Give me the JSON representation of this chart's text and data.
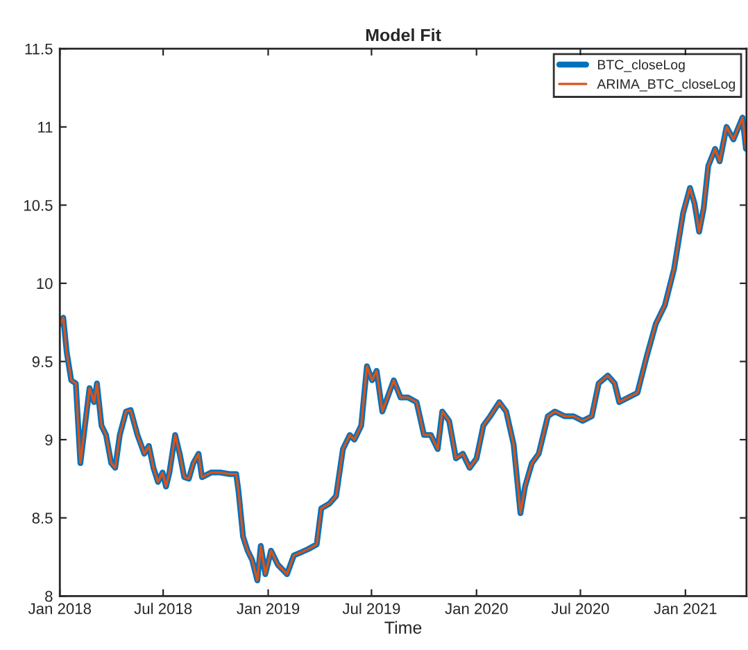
{
  "chart_data": {
    "type": "line",
    "title": "Model Fit",
    "xlabel": "Time",
    "x": [
      "2018-01-01",
      "2018-01-07",
      "2018-01-13",
      "2018-01-21",
      "2018-01-29",
      "2018-02-06",
      "2018-02-14",
      "2018-02-22",
      "2018-03-02",
      "2018-03-07",
      "2018-03-15",
      "2018-03-23",
      "2018-04-01",
      "2018-04-08",
      "2018-04-16",
      "2018-04-27",
      "2018-05-05",
      "2018-05-17",
      "2018-05-29",
      "2018-06-06",
      "2018-06-14",
      "2018-06-22",
      "2018-06-30",
      "2018-07-06",
      "2018-07-12",
      "2018-07-22",
      "2018-07-30",
      "2018-08-07",
      "2018-08-15",
      "2018-08-23",
      "2018-09-01",
      "2018-09-07",
      "2018-09-23",
      "2018-10-09",
      "2018-10-25",
      "2018-11-06",
      "2018-11-10",
      "2018-11-18",
      "2018-11-26",
      "2018-12-04",
      "2018-12-13",
      "2018-12-19",
      "2018-12-27",
      "2019-01-06",
      "2019-01-18",
      "2019-02-03",
      "2019-02-15",
      "2019-02-28",
      "2019-03-12",
      "2019-03-27",
      "2019-04-04",
      "2019-04-18",
      "2019-04-30",
      "2019-05-12",
      "2019-05-24",
      "2019-06-01",
      "2019-06-13",
      "2019-06-23",
      "2019-07-02",
      "2019-07-10",
      "2019-07-20",
      "2019-08-09",
      "2019-08-21",
      "2019-09-03",
      "2019-09-18",
      "2019-10-01",
      "2019-10-13",
      "2019-10-25",
      "2019-11-02",
      "2019-11-14",
      "2019-11-26",
      "2019-12-08",
      "2019-12-20",
      "2020-01-01",
      "2020-01-13",
      "2020-01-25",
      "2020-02-10",
      "2020-02-22",
      "2020-03-06",
      "2020-03-18",
      "2020-03-26",
      "2020-04-07",
      "2020-04-19",
      "2020-05-05",
      "2020-05-17",
      "2020-06-03",
      "2020-06-19",
      "2020-07-05",
      "2020-07-21",
      "2020-08-02",
      "2020-08-18",
      "2020-08-30",
      "2020-09-07",
      "2020-09-23",
      "2020-10-09",
      "2020-10-25",
      "2020-11-10",
      "2020-11-26",
      "2020-12-12",
      "2020-12-28",
      "2021-01-09",
      "2021-01-17",
      "2021-01-25",
      "2021-02-02",
      "2021-02-10",
      "2021-02-22",
      "2021-03-02",
      "2021-03-14",
      "2021-03-26",
      "2021-04-11",
      "2021-04-17"
    ],
    "series": [
      {
        "name": "BTC_closeLog",
        "color": "#0072bd",
        "values": [
          9.74,
          9.78,
          9.56,
          9.38,
          9.36,
          8.85,
          9.09,
          9.33,
          9.24,
          9.36,
          9.09,
          9.03,
          8.85,
          8.82,
          9.03,
          9.18,
          9.19,
          9.03,
          8.91,
          8.96,
          8.82,
          8.73,
          8.79,
          8.7,
          8.79,
          9.03,
          8.91,
          8.76,
          8.75,
          8.85,
          8.91,
          8.76,
          8.79,
          8.79,
          8.78,
          8.78,
          8.67,
          8.38,
          8.29,
          8.23,
          8.1,
          8.32,
          8.14,
          8.29,
          8.2,
          8.14,
          8.26,
          8.28,
          8.3,
          8.33,
          8.56,
          8.59,
          8.64,
          8.94,
          9.03,
          9.0,
          9.09,
          9.47,
          9.38,
          9.44,
          9.18,
          9.38,
          9.27,
          9.27,
          9.24,
          9.03,
          9.03,
          8.94,
          9.18,
          9.12,
          8.88,
          8.91,
          8.82,
          8.88,
          9.09,
          9.15,
          9.24,
          9.18,
          8.97,
          8.53,
          8.7,
          8.85,
          8.91,
          9.15,
          9.18,
          9.15,
          9.15,
          9.12,
          9.15,
          9.36,
          9.41,
          9.36,
          9.24,
          9.27,
          9.3,
          9.53,
          9.74,
          9.86,
          10.09,
          10.45,
          10.61,
          10.51,
          10.33,
          10.48,
          10.75,
          10.86,
          10.78,
          11.0,
          10.92,
          11.06,
          10.86
        ]
      },
      {
        "name": "ARIMA_BTC_closeLog",
        "color": "#d95319",
        "values": [
          9.74,
          9.78,
          9.56,
          9.38,
          9.36,
          8.85,
          9.09,
          9.33,
          9.24,
          9.36,
          9.09,
          9.03,
          8.85,
          8.82,
          9.03,
          9.18,
          9.19,
          9.03,
          8.91,
          8.96,
          8.82,
          8.73,
          8.79,
          8.7,
          8.79,
          9.03,
          8.91,
          8.76,
          8.75,
          8.85,
          8.91,
          8.76,
          8.79,
          8.79,
          8.78,
          8.78,
          8.67,
          8.38,
          8.29,
          8.23,
          8.1,
          8.32,
          8.14,
          8.29,
          8.2,
          8.14,
          8.26,
          8.28,
          8.3,
          8.33,
          8.56,
          8.59,
          8.64,
          8.94,
          9.03,
          9.0,
          9.09,
          9.47,
          9.38,
          9.44,
          9.18,
          9.38,
          9.27,
          9.27,
          9.24,
          9.03,
          9.03,
          8.94,
          9.18,
          9.12,
          8.88,
          8.91,
          8.82,
          8.88,
          9.09,
          9.15,
          9.24,
          9.18,
          8.97,
          8.53,
          8.7,
          8.85,
          8.91,
          9.15,
          9.18,
          9.15,
          9.15,
          9.12,
          9.15,
          9.36,
          9.41,
          9.36,
          9.24,
          9.27,
          9.3,
          9.53,
          9.74,
          9.86,
          10.09,
          10.45,
          10.61,
          10.51,
          10.33,
          10.48,
          10.75,
          10.86,
          10.78,
          11.0,
          10.92,
          11.06,
          10.86
        ]
      }
    ],
    "xlim": [
      "2018-01-01",
      "2021-04-18"
    ],
    "xticks": [
      {
        "value": "2018-01-01",
        "label": "Jan 2018"
      },
      {
        "value": "2018-07-01",
        "label": "Jul 2018"
      },
      {
        "value": "2019-01-01",
        "label": "Jan 2019"
      },
      {
        "value": "2019-07-01",
        "label": "Jul 2019"
      },
      {
        "value": "2020-01-01",
        "label": "Jan 2020"
      },
      {
        "value": "2020-07-01",
        "label": "Jul 2020"
      },
      {
        "value": "2021-01-01",
        "label": "Jan 2021"
      }
    ],
    "ylim": [
      8,
      11.5
    ],
    "yticks": [
      8,
      8.5,
      9,
      9.5,
      10,
      10.5,
      11,
      11.5
    ],
    "grid": false,
    "legend": "top right",
    "line_style": "solid"
  }
}
